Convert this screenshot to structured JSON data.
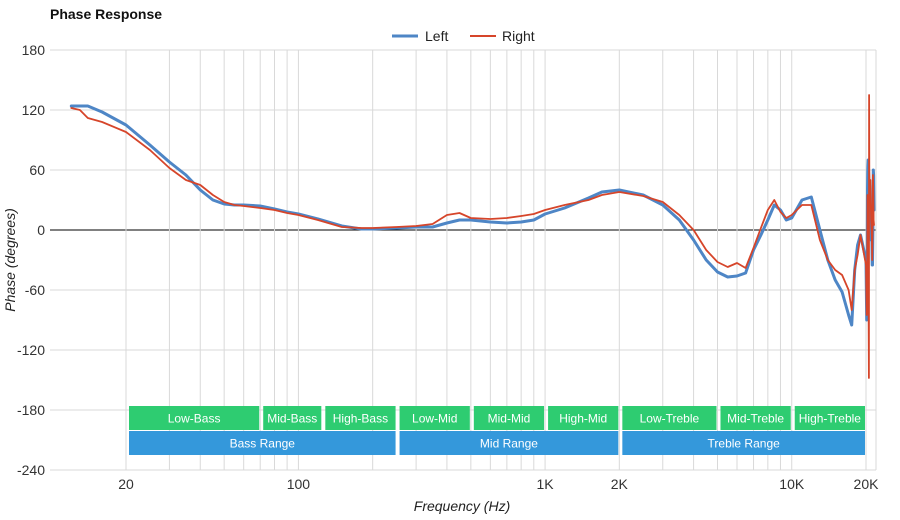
{
  "chart_data": {
    "type": "line",
    "title": "Phase Response",
    "xlabel": "Frequency (Hz)",
    "ylabel": "Phase (degrees)",
    "x_scale": "log",
    "xlim": [
      12,
      23000
    ],
    "ylim": [
      -240,
      180
    ],
    "x_ticks": [
      {
        "value": 20,
        "label": "20"
      },
      {
        "value": 100,
        "label": "100"
      },
      {
        "value": 1000,
        "label": "1K"
      },
      {
        "value": 2000,
        "label": "2K"
      },
      {
        "value": 10000,
        "label": "10K"
      },
      {
        "value": 20000,
        "label": "20K"
      }
    ],
    "y_ticks": [
      180,
      120,
      60,
      0,
      -60,
      -120,
      -180,
      -240
    ],
    "grid": true,
    "legend_position": "top-center",
    "series": [
      {
        "name": "Left",
        "color": "#4e86c6",
        "points": [
          [
            12,
            124
          ],
          [
            14,
            124
          ],
          [
            16,
            118
          ],
          [
            20,
            105
          ],
          [
            25,
            85
          ],
          [
            30,
            68
          ],
          [
            35,
            55
          ],
          [
            40,
            40
          ],
          [
            45,
            30
          ],
          [
            50,
            26
          ],
          [
            55,
            25
          ],
          [
            60,
            25
          ],
          [
            70,
            24
          ],
          [
            80,
            21
          ],
          [
            90,
            18
          ],
          [
            100,
            16
          ],
          [
            120,
            11
          ],
          [
            150,
            4
          ],
          [
            180,
            1
          ],
          [
            200,
            1
          ],
          [
            250,
            2
          ],
          [
            300,
            3
          ],
          [
            350,
            3
          ],
          [
            400,
            7
          ],
          [
            450,
            10
          ],
          [
            500,
            10
          ],
          [
            600,
            8
          ],
          [
            700,
            7
          ],
          [
            800,
            8
          ],
          [
            900,
            10
          ],
          [
            1000,
            16
          ],
          [
            1200,
            22
          ],
          [
            1500,
            32
          ],
          [
            1700,
            38
          ],
          [
            2000,
            40
          ],
          [
            2500,
            35
          ],
          [
            3000,
            25
          ],
          [
            3500,
            10
          ],
          [
            4000,
            -10
          ],
          [
            4500,
            -30
          ],
          [
            5000,
            -42
          ],
          [
            5500,
            -47
          ],
          [
            6000,
            -46
          ],
          [
            6500,
            -43
          ],
          [
            7000,
            -20
          ],
          [
            7500,
            -5
          ],
          [
            8000,
            10
          ],
          [
            8500,
            25
          ],
          [
            9000,
            20
          ],
          [
            9500,
            10
          ],
          [
            10000,
            12
          ],
          [
            11000,
            30
          ],
          [
            12000,
            33
          ],
          [
            13000,
            0
          ],
          [
            14000,
            -30
          ],
          [
            15000,
            -50
          ],
          [
            16000,
            -62
          ],
          [
            17000,
            -85
          ],
          [
            17500,
            -95
          ],
          [
            18000,
            -40
          ],
          [
            18500,
            -15
          ],
          [
            19000,
            -5
          ],
          [
            20000,
            -30
          ],
          [
            21000,
            -90
          ],
          [
            21500,
            -60
          ],
          [
            22000,
            40
          ],
          [
            22500,
            60
          ],
          [
            23000,
            70
          ],
          [
            23500,
            60
          ],
          [
            24000,
            40
          ],
          [
            25000,
            45
          ],
          [
            26000,
            10
          ],
          [
            27000,
            -10
          ],
          [
            28000,
            0
          ],
          [
            28500,
            -35
          ],
          [
            29000,
            -35
          ],
          [
            29500,
            0
          ],
          [
            30000,
            60
          ],
          [
            30500,
            55
          ],
          [
            31000,
            20
          ]
        ]
      },
      {
        "name": "Right",
        "color": "#d6452a",
        "points": [
          [
            12,
            122
          ],
          [
            13,
            120
          ],
          [
            14,
            112
          ],
          [
            16,
            108
          ],
          [
            20,
            98
          ],
          [
            25,
            80
          ],
          [
            30,
            62
          ],
          [
            35,
            50
          ],
          [
            40,
            45
          ],
          [
            45,
            35
          ],
          [
            50,
            28
          ],
          [
            55,
            25
          ],
          [
            60,
            24
          ],
          [
            70,
            22
          ],
          [
            80,
            20
          ],
          [
            90,
            17
          ],
          [
            100,
            15
          ],
          [
            120,
            10
          ],
          [
            150,
            3
          ],
          [
            180,
            2
          ],
          [
            200,
            2
          ],
          [
            250,
            3
          ],
          [
            300,
            4
          ],
          [
            350,
            6
          ],
          [
            400,
            15
          ],
          [
            450,
            17
          ],
          [
            500,
            12
          ],
          [
            600,
            11
          ],
          [
            700,
            12
          ],
          [
            800,
            14
          ],
          [
            900,
            16
          ],
          [
            1000,
            20
          ],
          [
            1200,
            25
          ],
          [
            1500,
            30
          ],
          [
            1700,
            35
          ],
          [
            2000,
            38
          ],
          [
            2500,
            34
          ],
          [
            3000,
            28
          ],
          [
            3500,
            15
          ],
          [
            4000,
            0
          ],
          [
            4500,
            -20
          ],
          [
            5000,
            -32
          ],
          [
            5500,
            -37
          ],
          [
            6000,
            -33
          ],
          [
            6500,
            -38
          ],
          [
            7000,
            -18
          ],
          [
            7500,
            2
          ],
          [
            8000,
            20
          ],
          [
            8500,
            30
          ],
          [
            9000,
            18
          ],
          [
            9500,
            12
          ],
          [
            10000,
            15
          ],
          [
            11000,
            25
          ],
          [
            12000,
            25
          ],
          [
            13000,
            -10
          ],
          [
            14000,
            -30
          ],
          [
            15000,
            -40
          ],
          [
            16000,
            -45
          ],
          [
            17000,
            -60
          ],
          [
            17500,
            -80
          ],
          [
            18000,
            -40
          ],
          [
            18500,
            -25
          ],
          [
            19000,
            -5
          ],
          [
            20000,
            -35
          ],
          [
            21000,
            -85
          ],
          [
            21500,
            -80
          ],
          [
            22000,
            35
          ],
          [
            22500,
            25
          ],
          [
            23000,
            5
          ],
          [
            23500,
            -60
          ],
          [
            24000,
            -148
          ],
          [
            24200,
            135
          ],
          [
            24500,
            60
          ],
          [
            25000,
            45
          ],
          [
            26000,
            50
          ],
          [
            27000,
            10
          ],
          [
            28000,
            -5
          ],
          [
            28500,
            -30
          ],
          [
            29000,
            0
          ],
          [
            29500,
            55
          ],
          [
            30000,
            40
          ],
          [
            30500,
            10
          ],
          [
            31000,
            5
          ]
        ]
      }
    ],
    "bands": [
      {
        "label": "Low-Bass",
        "row": 1,
        "color": "#2ecc71"
      },
      {
        "label": "Mid-Bass",
        "row": 1,
        "color": "#2ecc71"
      },
      {
        "label": "High-Bass",
        "row": 1,
        "color": "#2ecc71"
      },
      {
        "label": "Low-Mid",
        "row": 1,
        "color": "#2ecc71"
      },
      {
        "label": "Mid-Mid",
        "row": 1,
        "color": "#2ecc71"
      },
      {
        "label": "High-Mid",
        "row": 1,
        "color": "#2ecc71"
      },
      {
        "label": "Low-Treble",
        "row": 1,
        "color": "#2ecc71"
      },
      {
        "label": "Mid-Treble",
        "row": 1,
        "color": "#2ecc71"
      },
      {
        "label": "High-Treble",
        "row": 1,
        "color": "#2ecc71"
      },
      {
        "label": "Bass Range",
        "row": 2,
        "color": "#3498db"
      },
      {
        "label": "Mid Range",
        "row": 2,
        "color": "#3498db"
      },
      {
        "label": "Treble Range",
        "row": 2,
        "color": "#3498db"
      }
    ]
  }
}
